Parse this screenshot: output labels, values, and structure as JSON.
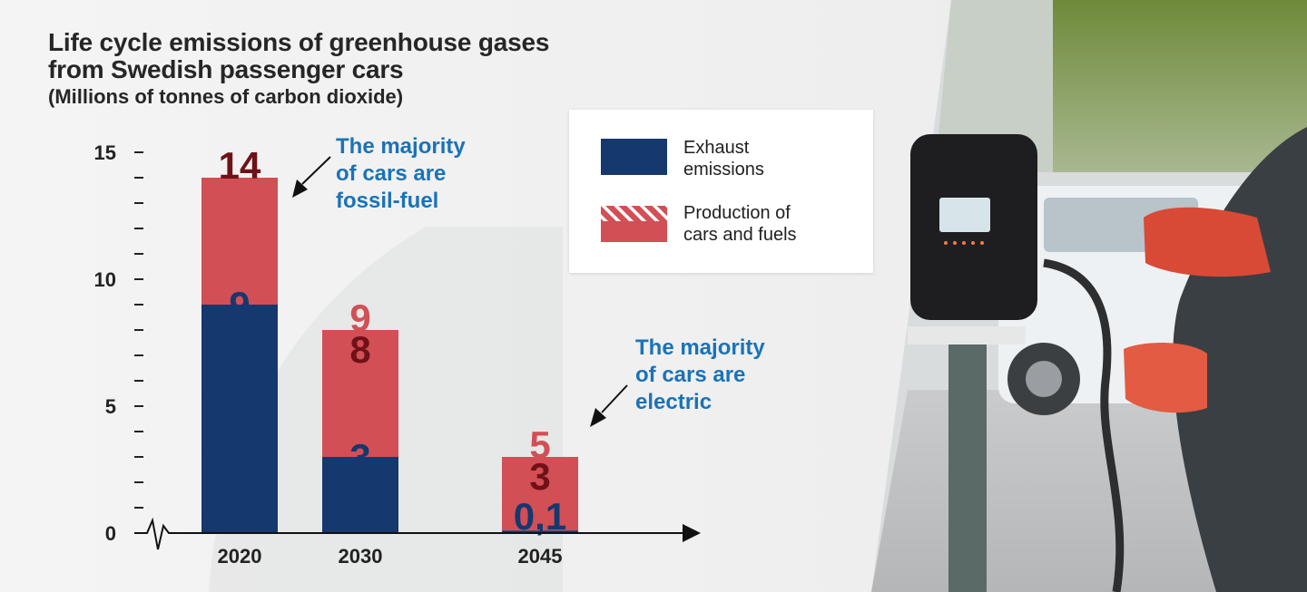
{
  "title": [
    "Life cycle emissions of greenhouse gases",
    "from Swedish passenger cars"
  ],
  "subtitle": "(Millions of tonnes of carbon dioxide)",
  "colors": {
    "exhaust": "#15386e",
    "production": "#d24f55",
    "dark_label": "#6e1218",
    "light_label": "#d24f55",
    "note_blue": "#1a73b8"
  },
  "legend": {
    "exhaust_label": [
      "Exhaust",
      "emissions"
    ],
    "production_label": [
      "Production of",
      "cars and fuels"
    ]
  },
  "annotations": {
    "fossil": [
      "The majority",
      "of cars are",
      "fossil-fuel"
    ],
    "electric": [
      "The majority",
      "of cars are",
      "electric"
    ]
  },
  "chart_data": {
    "type": "bar",
    "stacked": true,
    "categories": [
      "2020",
      "2030",
      "2045"
    ],
    "series": [
      {
        "name": "Exhaust emissions",
        "values": [
          9,
          3,
          0.1
        ]
      },
      {
        "name": "Production of cars and fuels",
        "values": [
          5,
          5,
          2.9
        ]
      }
    ],
    "hatched_top": [
      0,
      1,
      2
    ],
    "labels": {
      "total": [
        "14",
        "9",
        "5"
      ],
      "hatch_base": [
        null,
        "8",
        "3"
      ],
      "exhaust": [
        "9",
        "3",
        "0,1"
      ]
    },
    "ylim": [
      0,
      15
    ],
    "yticks": [
      0,
      5,
      10,
      15
    ],
    "minor_ticks": 1,
    "xlabel": "",
    "ylabel": ""
  }
}
